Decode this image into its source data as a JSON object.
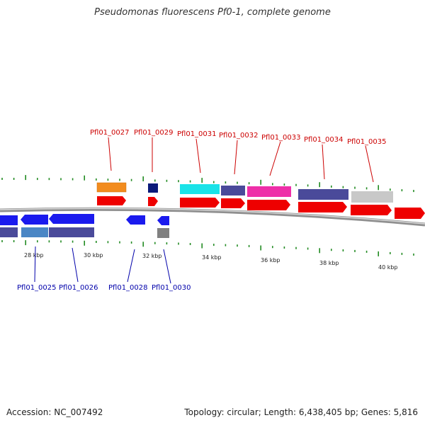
{
  "title": "Pseudomonas fluorescens Pf0-1, complete genome",
  "accession": "Accession: NC_007492",
  "summary": "Topology: circular; Length: 6,438,405 bp; Genes: 5,816",
  "colors": {
    "forward_label": "#cc0000",
    "reverse_label": "#0000aa",
    "axis": "#888888",
    "tick": "#228b22"
  },
  "scale_labels": [
    "28 kbp",
    "30 kbp",
    "32 kbp",
    "34 kbp",
    "36 kbp",
    "38 kbp",
    "40 kbp"
  ],
  "top_labels": [
    "Pfl01_0027",
    "Pfl01_0029",
    "Pfl01_0031",
    "Pfl01_0032",
    "Pfl01_0033",
    "Pfl01_0034",
    "Pfl01_0035"
  ],
  "bottom_labels": [
    "Pfl01_0025",
    "Pfl01_0026",
    "Pfl01_0028",
    "Pfl01_0030"
  ]
}
